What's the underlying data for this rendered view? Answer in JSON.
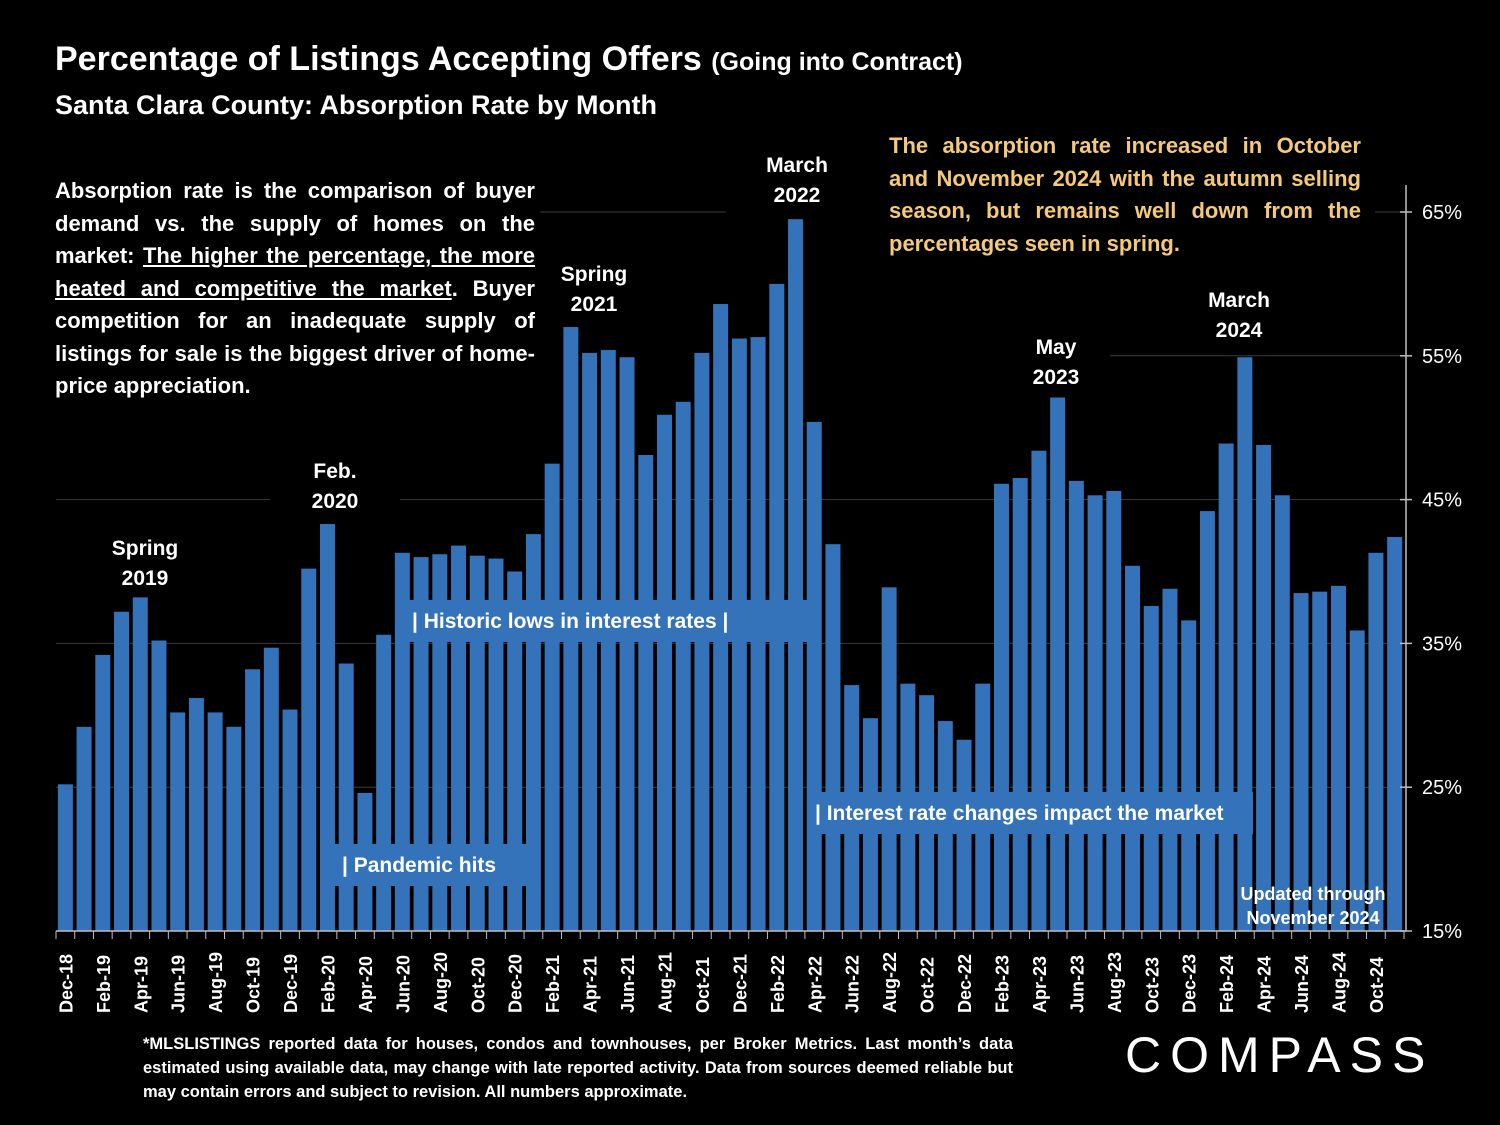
{
  "header": {
    "title": "Percentage of Listings Accepting Offers",
    "title_suffix": "(Going into Contract)",
    "subtitle": "Santa Clara County:  Absorption Rate by Month"
  },
  "description": {
    "part1": "Absorption rate is the comparison of buyer demand vs. the supply of homes on the market: ",
    "underlined": "The higher the percentage, the more heated and competitive the market",
    "part2": ".  Buyer competition for an inadequate supply of listings for sale is the biggest driver of home-price appreciation."
  },
  "highlight_note": "The absorption rate increased in October and November 2024 with the autumn selling season, but remains well down from the percentages seen in spring.",
  "footnote": "*MLSLISTINGS reported data for houses, condos and townhouses, per Broker Metrics. Last month’s data estimated using available data, may change with late reported activity. Data from sources deemed reliable but may contain errors and subject to revision. All numbers approximate.",
  "logo_text": "COMPASS",
  "colors": {
    "bar": "#3473b9",
    "background": "#000000",
    "text": "#ffffff",
    "highlight": "#f5c97a",
    "label_box": "#3473b9"
  },
  "chart_data": {
    "type": "bar",
    "title": "Percentage of Listings Accepting Offers (Going into Contract)",
    "subtitle": "Santa Clara County:  Absorption Rate by Month",
    "ylim": [
      15,
      67
    ],
    "y_ticks": [
      "15%",
      "25%",
      "35%",
      "45%",
      "55%",
      "65%"
    ],
    "y_tick_values": [
      15,
      25,
      35,
      45,
      55,
      65
    ],
    "y_axis_side": "right",
    "grid": "horizontal",
    "categories": [
      "Dec-18",
      "Jan-19",
      "Feb-19",
      "Mar-19",
      "Apr-19",
      "May-19",
      "Jun-19",
      "Jul-19",
      "Aug-19",
      "Sep-19",
      "Oct-19",
      "Nov-19",
      "Dec-19",
      "Jan-20",
      "Feb-20",
      "Mar-20",
      "Apr-20",
      "May-20",
      "Jun-20",
      "Jul-20",
      "Aug-20",
      "Sep-20",
      "Oct-20",
      "Nov-20",
      "Dec-20",
      "Jan-21",
      "Feb-21",
      "Mar-21",
      "Apr-21",
      "May-21",
      "Jun-21",
      "Jul-21",
      "Aug-21",
      "Sep-21",
      "Oct-21",
      "Nov-21",
      "Dec-21",
      "Jan-22",
      "Feb-22",
      "Mar-22",
      "Apr-22",
      "May-22",
      "Jun-22",
      "Jul-22",
      "Aug-22",
      "Sep-22",
      "Oct-22",
      "Nov-22",
      "Dec-22",
      "Jan-23",
      "Feb-23",
      "Mar-23",
      "Apr-23",
      "May-23",
      "Jun-23",
      "Jul-23",
      "Aug-23",
      "Sep-23",
      "Oct-23",
      "Nov-23",
      "Dec-23",
      "Jan-24",
      "Feb-24",
      "Mar-24",
      "Apr-24",
      "May-24",
      "Jun-24",
      "Jul-24",
      "Aug-24",
      "Sep-24",
      "Oct-24",
      "Nov-24"
    ],
    "tick_labels": [
      "Dec-18",
      "",
      "Feb-19",
      "",
      "Apr-19",
      "",
      "Jun-19",
      "",
      "Aug-19",
      "",
      "Oct-19",
      "",
      "Dec-19",
      "",
      "Feb-20",
      "",
      "Apr-20",
      "",
      "Jun-20",
      "",
      "Aug-20",
      "",
      "Oct-20",
      "",
      "Dec-20",
      "",
      "Feb-21",
      "",
      "Apr-21",
      "",
      "Jun-21",
      "",
      "Aug-21",
      "",
      "Oct-21",
      "",
      "Dec-21",
      "",
      "Feb-22",
      "",
      "Apr-22",
      "",
      "Jun-22",
      "",
      "Aug-22",
      "",
      "Oct-22",
      "",
      "Dec-22",
      "",
      "Feb-23",
      "",
      "Apr-23",
      "",
      "Jun-23",
      "",
      "Aug-23",
      "",
      "Oct-23",
      "",
      "Dec-23",
      "",
      "Feb-24",
      "",
      "Apr-24",
      "",
      "Jun-24",
      "",
      "Aug-24",
      "",
      "Oct-24",
      ""
    ],
    "values": [
      25.2,
      29.2,
      34.2,
      37.2,
      38.2,
      35.2,
      30.2,
      31.2,
      30.2,
      29.2,
      33.2,
      34.7,
      30.4,
      40.2,
      43.3,
      33.6,
      24.6,
      35.6,
      41.3,
      41.0,
      41.2,
      41.8,
      41.1,
      40.9,
      40.0,
      42.6,
      47.5,
      57.0,
      55.2,
      55.4,
      54.9,
      48.1,
      50.9,
      51.8,
      55.2,
      58.6,
      56.2,
      56.3,
      60.0,
      64.5,
      50.4,
      41.9,
      32.1,
      29.8,
      38.9,
      32.2,
      31.4,
      29.6,
      28.3,
      32.2,
      46.1,
      46.5,
      48.4,
      52.1,
      46.3,
      45.3,
      45.6,
      40.4,
      37.6,
      38.8,
      36.6,
      44.2,
      48.9,
      54.9,
      48.8,
      45.3,
      38.5,
      38.6,
      39.0,
      35.9,
      41.3,
      42.4
    ],
    "annotations": [
      {
        "label_line1": "Spring",
        "label_line2": "2019",
        "at": "Apr-19"
      },
      {
        "label_line1": "Feb.",
        "label_line2": "2020",
        "at": "Feb-20"
      },
      {
        "label_line1": "Spring",
        "label_line2": "2021",
        "at": "Mar-21"
      },
      {
        "label_line1": "March",
        "label_line2": "2022",
        "at": "Mar-22"
      },
      {
        "label_line1": "May",
        "label_line2": "2023",
        "at": "May-23"
      },
      {
        "label_line1": "March",
        "label_line2": "2024",
        "at": "Mar-24"
      }
    ],
    "range_labels": [
      {
        "text": "|   Historic lows in interest rates    |"
      },
      {
        "text": "| Pandemic hits"
      },
      {
        "text": "| Interest rate changes impact the market"
      }
    ],
    "updated_note_line1": "Updated through",
    "updated_note_line2": "November 2024"
  }
}
